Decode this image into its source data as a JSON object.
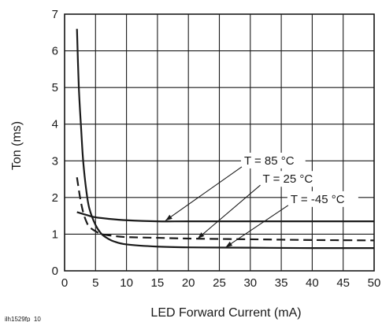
{
  "chart_data": {
    "type": "line",
    "title": "",
    "xlabel": "LED Forward Current (mA)",
    "ylabel": "Ton (ms)",
    "xlim": [
      0,
      50
    ],
    "ylim": [
      0,
      7
    ],
    "x_ticks": [
      0,
      5,
      10,
      15,
      20,
      25,
      30,
      35,
      40,
      45,
      50
    ],
    "y_ticks": [
      0,
      1,
      2,
      3,
      4,
      5,
      6,
      7
    ],
    "grid": true,
    "legend": "none",
    "series": [
      {
        "name": "T = 85 °C",
        "style": "solid",
        "color": "#1a1a1a",
        "points": [
          [
            2,
            1.6
          ],
          [
            3,
            1.55
          ],
          [
            4,
            1.5
          ],
          [
            5,
            1.46
          ],
          [
            7,
            1.42
          ],
          [
            10,
            1.38
          ],
          [
            15,
            1.35
          ],
          [
            20,
            1.35
          ],
          [
            30,
            1.35
          ],
          [
            40,
            1.35
          ],
          [
            50,
            1.35
          ]
        ]
      },
      {
        "name": "T = 25 °C",
        "style": "dashed",
        "color": "#1a1a1a",
        "points": [
          [
            2,
            2.55
          ],
          [
            2.5,
            2.0
          ],
          [
            3,
            1.6
          ],
          [
            3.5,
            1.35
          ],
          [
            4,
            1.2
          ],
          [
            5,
            1.08
          ],
          [
            6,
            1.0
          ],
          [
            8,
            0.95
          ],
          [
            10,
            0.92
          ],
          [
            15,
            0.9
          ],
          [
            20,
            0.88
          ],
          [
            30,
            0.86
          ],
          [
            40,
            0.84
          ],
          [
            50,
            0.83
          ]
        ]
      },
      {
        "name": "T = -45 °C",
        "style": "solid",
        "color": "#1a1a1a",
        "points": [
          [
            2,
            6.6
          ],
          [
            2.3,
            5.0
          ],
          [
            2.7,
            3.8
          ],
          [
            3,
            3.0
          ],
          [
            3.5,
            2.2
          ],
          [
            4,
            1.7
          ],
          [
            5,
            1.25
          ],
          [
            6,
            1.0
          ],
          [
            7,
            0.88
          ],
          [
            8,
            0.8
          ],
          [
            10,
            0.72
          ],
          [
            15,
            0.66
          ],
          [
            20,
            0.64
          ],
          [
            30,
            0.63
          ],
          [
            40,
            0.62
          ],
          [
            50,
            0.62
          ]
        ]
      }
    ],
    "annotations": [
      {
        "text": "T = 85 °C",
        "label_at": [
          29,
          2.9
        ],
        "arrow_to": [
          16.3,
          1.37
        ]
      },
      {
        "text": "T = 25 °C",
        "label_at": [
          32,
          2.4
        ],
        "arrow_to": [
          21.5,
          0.88
        ]
      },
      {
        "text": "T = -45 °C",
        "label_at": [
          36.5,
          1.85
        ],
        "arrow_to": [
          26,
          0.64
        ]
      }
    ],
    "figure_id": "ilh1529fp_10"
  }
}
